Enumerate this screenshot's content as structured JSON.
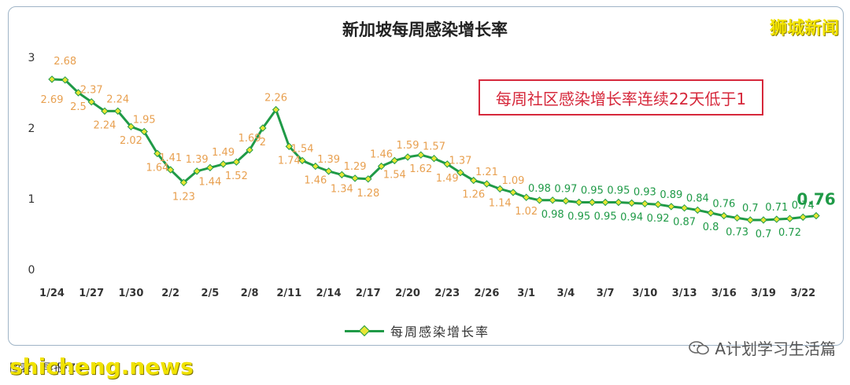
{
  "brand": "狮城新闻",
  "note": "每周社区感染增长率连续22天低于1",
  "source": "图表：早报·ZB",
  "watermark": "shicheng.news",
  "wechat_label": "A计划学习生活篇",
  "colors": {
    "line": "#1f9a47",
    "marker_fill": "#e8e635",
    "label_orange": "#e8a050",
    "label_green": "#1f9a47",
    "note": "#d6283b"
  },
  "chart_data": {
    "type": "line",
    "title": "新加坡每周感染增长率",
    "legend": "bottom",
    "ylim": [
      0,
      3
    ],
    "yticks": [
      "0",
      "1",
      "2",
      "3"
    ],
    "xtick_labels": [
      "1/24",
      "1/27",
      "1/30",
      "2/2",
      "2/5",
      "2/8",
      "2/11",
      "2/14",
      "2/17",
      "2/20",
      "2/23",
      "2/26",
      "3/1",
      "3/4",
      "3/7",
      "3/10",
      "3/13",
      "3/16",
      "3/19",
      "3/22"
    ],
    "xtick_every": 3,
    "grid": false,
    "series": [
      {
        "name": "每周感染增长率",
        "values": [
          2.69,
          2.68,
          2.5,
          2.37,
          2.24,
          2.24,
          2.02,
          1.95,
          1.64,
          1.41,
          1.23,
          1.39,
          1.44,
          1.49,
          1.52,
          1.69,
          2,
          2.26,
          1.74,
          1.54,
          1.46,
          1.39,
          1.34,
          1.29,
          1.28,
          1.46,
          1.54,
          1.59,
          1.62,
          1.57,
          1.49,
          1.37,
          1.26,
          1.21,
          1.14,
          1.09,
          1.02,
          0.98,
          0.98,
          0.97,
          0.95,
          0.95,
          0.95,
          0.95,
          0.94,
          0.93,
          0.92,
          0.89,
          0.87,
          0.84,
          0.8,
          0.76,
          0.73,
          0.7,
          0.7,
          0.71,
          0.72,
          0.74,
          0.76
        ],
        "labels": [
          "2.69",
          "2.68",
          "2.5",
          "2.37",
          "2.24",
          "2.24",
          "2.02",
          "1.95",
          "1.64",
          "1.41",
          "1.23",
          "1.39",
          "1.44",
          "1.49",
          "1.52",
          "1.69",
          "2",
          "2.26",
          "1.74",
          "1.54",
          "1.46",
          "1.39",
          "1.34",
          "1.29",
          "1.28",
          "1.46",
          "1.54",
          "1.59",
          "1.62",
          "1.57",
          "1.49",
          "1.37",
          "1.26",
          "1.21",
          "1.14",
          "1.09",
          "1.02",
          "0.98",
          "0.98",
          "0.97",
          "0.95",
          "0.95",
          "0.95",
          "0.95",
          "0.94",
          "0.93",
          "0.92",
          "0.89",
          "0.87",
          "0.84",
          "0.8",
          "0.76",
          "0.73",
          "0.7",
          "0.7",
          "0.71",
          "0.72",
          "0.74",
          "0.76"
        ]
      }
    ]
  }
}
